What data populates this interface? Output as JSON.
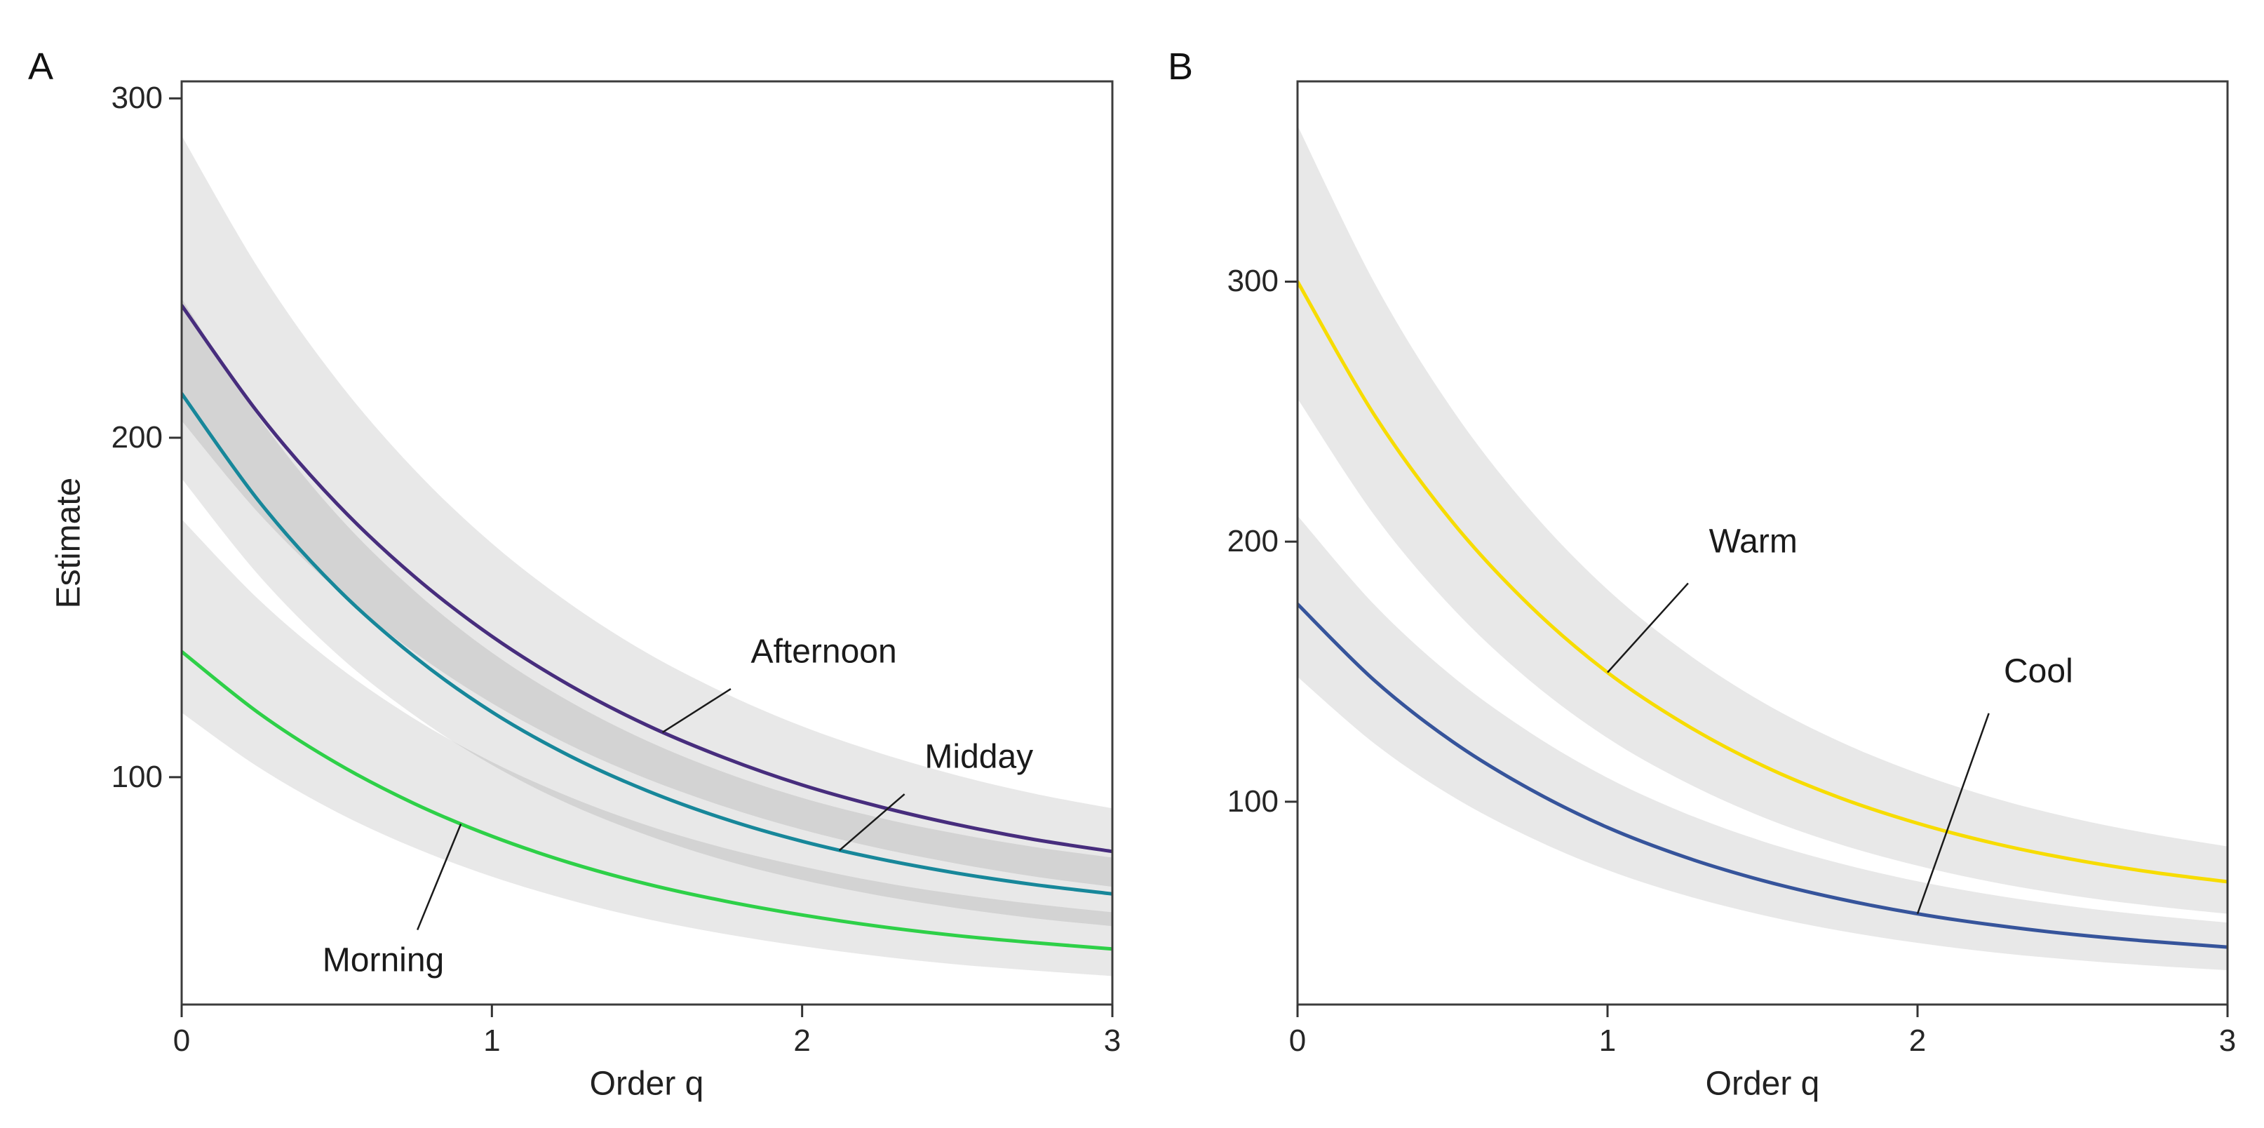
{
  "figure": {
    "background": "#ffffff",
    "panels": [
      {
        "letter": "A"
      },
      {
        "letter": "B"
      }
    ]
  },
  "chart_data": [
    {
      "panel": "A",
      "type": "line",
      "title": "",
      "xlabel": "Order q",
      "ylabel": "Estimate",
      "x_domain": [
        0,
        3
      ],
      "y_domain": [
        33,
        305
      ],
      "x_ticks": [
        0,
        1,
        2,
        3
      ],
      "y_ticks": [
        100,
        200,
        300
      ],
      "grid": false,
      "legend_position": "annotated-on-plot",
      "ribbon_color": "rgba(0,0,0,0.09)",
      "q": [
        0,
        0.25,
        0.5,
        0.75,
        1,
        1.25,
        1.5,
        1.75,
        2,
        2.25,
        2.5,
        2.75,
        3
      ],
      "series": [
        {
          "name": "Afternoon",
          "color": "#472d7d",
          "values": [
            239,
            206.9,
            180.6,
            159.1,
            141.5,
            127.1,
            115.3,
            105.7,
            97.7,
            91.3,
            86.0,
            81.6,
            78.1
          ],
          "upper": [
            289,
            249.5,
            217.1,
            190.6,
            168.9,
            151.2,
            136.6,
            124.8,
            115.0,
            107.1,
            100.5,
            95.1,
            90.8
          ],
          "lower": [
            205,
            177.6,
            155.2,
            136.8,
            121.8,
            109.5,
            99.5,
            91.3,
            84.5,
            79.0,
            74.5,
            70.7,
            67.7
          ]
        },
        {
          "name": "Midday",
          "color": "#17879a",
          "values": [
            213,
            181.2,
            155.7,
            135.5,
            119.2,
            106.3,
            96.0,
            87.7,
            81.1,
            75.9,
            71.7,
            68.3,
            65.6
          ],
          "upper": [
            241,
            205.8,
            177.4,
            154.9,
            136.7,
            122.3,
            110.7,
            101.4,
            93.9,
            88.0,
            83.3,
            79.4,
            76.3
          ],
          "lower": [
            188,
            159.3,
            136.3,
            118.2,
            103.6,
            92.0,
            82.9,
            75.5,
            69.7,
            65.1,
            61.4,
            58.4,
            56.1
          ]
        },
        {
          "name": "Morning",
          "color": "#2ed048",
          "values": [
            137,
            118.8,
            104.1,
            92.2,
            82.6,
            74.8,
            68.5,
            63.5,
            59.4,
            56.0,
            53.3,
            51.2,
            49.4
          ],
          "upper": [
            176,
            152.2,
            132.9,
            117.2,
            104.5,
            94.2,
            85.8,
            79.1,
            73.7,
            69.1,
            65.5,
            62.6,
            60.2
          ],
          "lower": [
            119,
            102.8,
            89.7,
            79.2,
            70.7,
            63.8,
            58.2,
            53.8,
            50.2,
            47.2,
            44.8,
            43.0,
            41.4
          ]
        }
      ],
      "annotations": [
        {
          "label": "Afternoon",
          "text": {
            "q": 2.07,
            "v": 137
          },
          "leader": [
            [
              1.77,
              126
            ],
            [
              1.55,
              113.2
            ]
          ]
        },
        {
          "label": "Midday",
          "text": {
            "q": 2.57,
            "v": 106
          },
          "leader": [
            [
              2.33,
              95
            ],
            [
              2.12,
              78.4
            ]
          ]
        },
        {
          "label": "Morning",
          "text": {
            "q": 0.65,
            "v": 46
          },
          "leader": [
            [
              0.76,
              55
            ],
            [
              0.9,
              86.2
            ]
          ]
        }
      ]
    },
    {
      "panel": "B",
      "type": "line",
      "title": "",
      "xlabel": "Order q",
      "ylabel": "",
      "x_domain": [
        0,
        3
      ],
      "y_domain": [
        22,
        377
      ],
      "x_ticks": [
        0,
        1,
        2,
        3
      ],
      "y_ticks": [
        100,
        200,
        300
      ],
      "grid": false,
      "legend_position": "annotated-on-plot",
      "ribbon_color": "rgba(0,0,0,0.09)",
      "q": [
        0,
        0.25,
        0.5,
        0.75,
        1,
        1.25,
        1.5,
        1.75,
        2,
        2.25,
        2.5,
        2.75,
        3
      ],
      "series": [
        {
          "name": "Warm",
          "color": "#f7dc00",
          "values": [
            300,
            248.3,
            207.5,
            175.3,
            149.7,
            129.8,
            113.9,
            101.5,
            91.7,
            83.9,
            77.8,
            73.0,
            69.2
          ],
          "upper": [
            360,
            299.1,
            250.7,
            212.3,
            181.6,
            157.6,
            138.3,
            123.1,
            111.0,
            101.3,
            93.7,
            87.7,
            82.8
          ],
          "lower": [
            255,
            209.8,
            174.4,
            146.5,
            124.5,
            107.6,
            94.1,
            83.6,
            75.4,
            68.9,
            63.9,
            60.0,
            56.9
          ]
        },
        {
          "name": "Cool",
          "color": "#36549b",
          "values": [
            176,
            146.4,
            123.1,
            104.8,
            90.1,
            78.7,
            69.7,
            62.6,
            56.9,
            52.5,
            49.0,
            46.3,
            44.1
          ],
          "upper": [
            210,
            175.5,
            148.2,
            126.6,
            109.2,
            95.6,
            84.8,
            76.3,
            69.4,
            64.0,
            59.7,
            56.3,
            53.5
          ],
          "lower": [
            148,
            122.2,
            102.0,
            86.3,
            73.7,
            64.0,
            56.4,
            50.4,
            45.7,
            42.0,
            39.2,
            37.0,
            35.2
          ]
        }
      ],
      "annotations": [
        {
          "label": "Warm",
          "text": {
            "q": 1.47,
            "v": 200
          },
          "leader": [
            [
              1.26,
              184
            ],
            [
              1.0,
              149.7
            ]
          ]
        },
        {
          "label": "Cool",
          "text": {
            "q": 2.39,
            "v": 150
          },
          "leader": [
            [
              2.23,
              134
            ],
            [
              2.0,
              56.9
            ]
          ]
        }
      ]
    }
  ],
  "style": {
    "spine_color": "#3c3c3c",
    "tick_color": "#333333",
    "leader_color": "#1a1a1a"
  }
}
